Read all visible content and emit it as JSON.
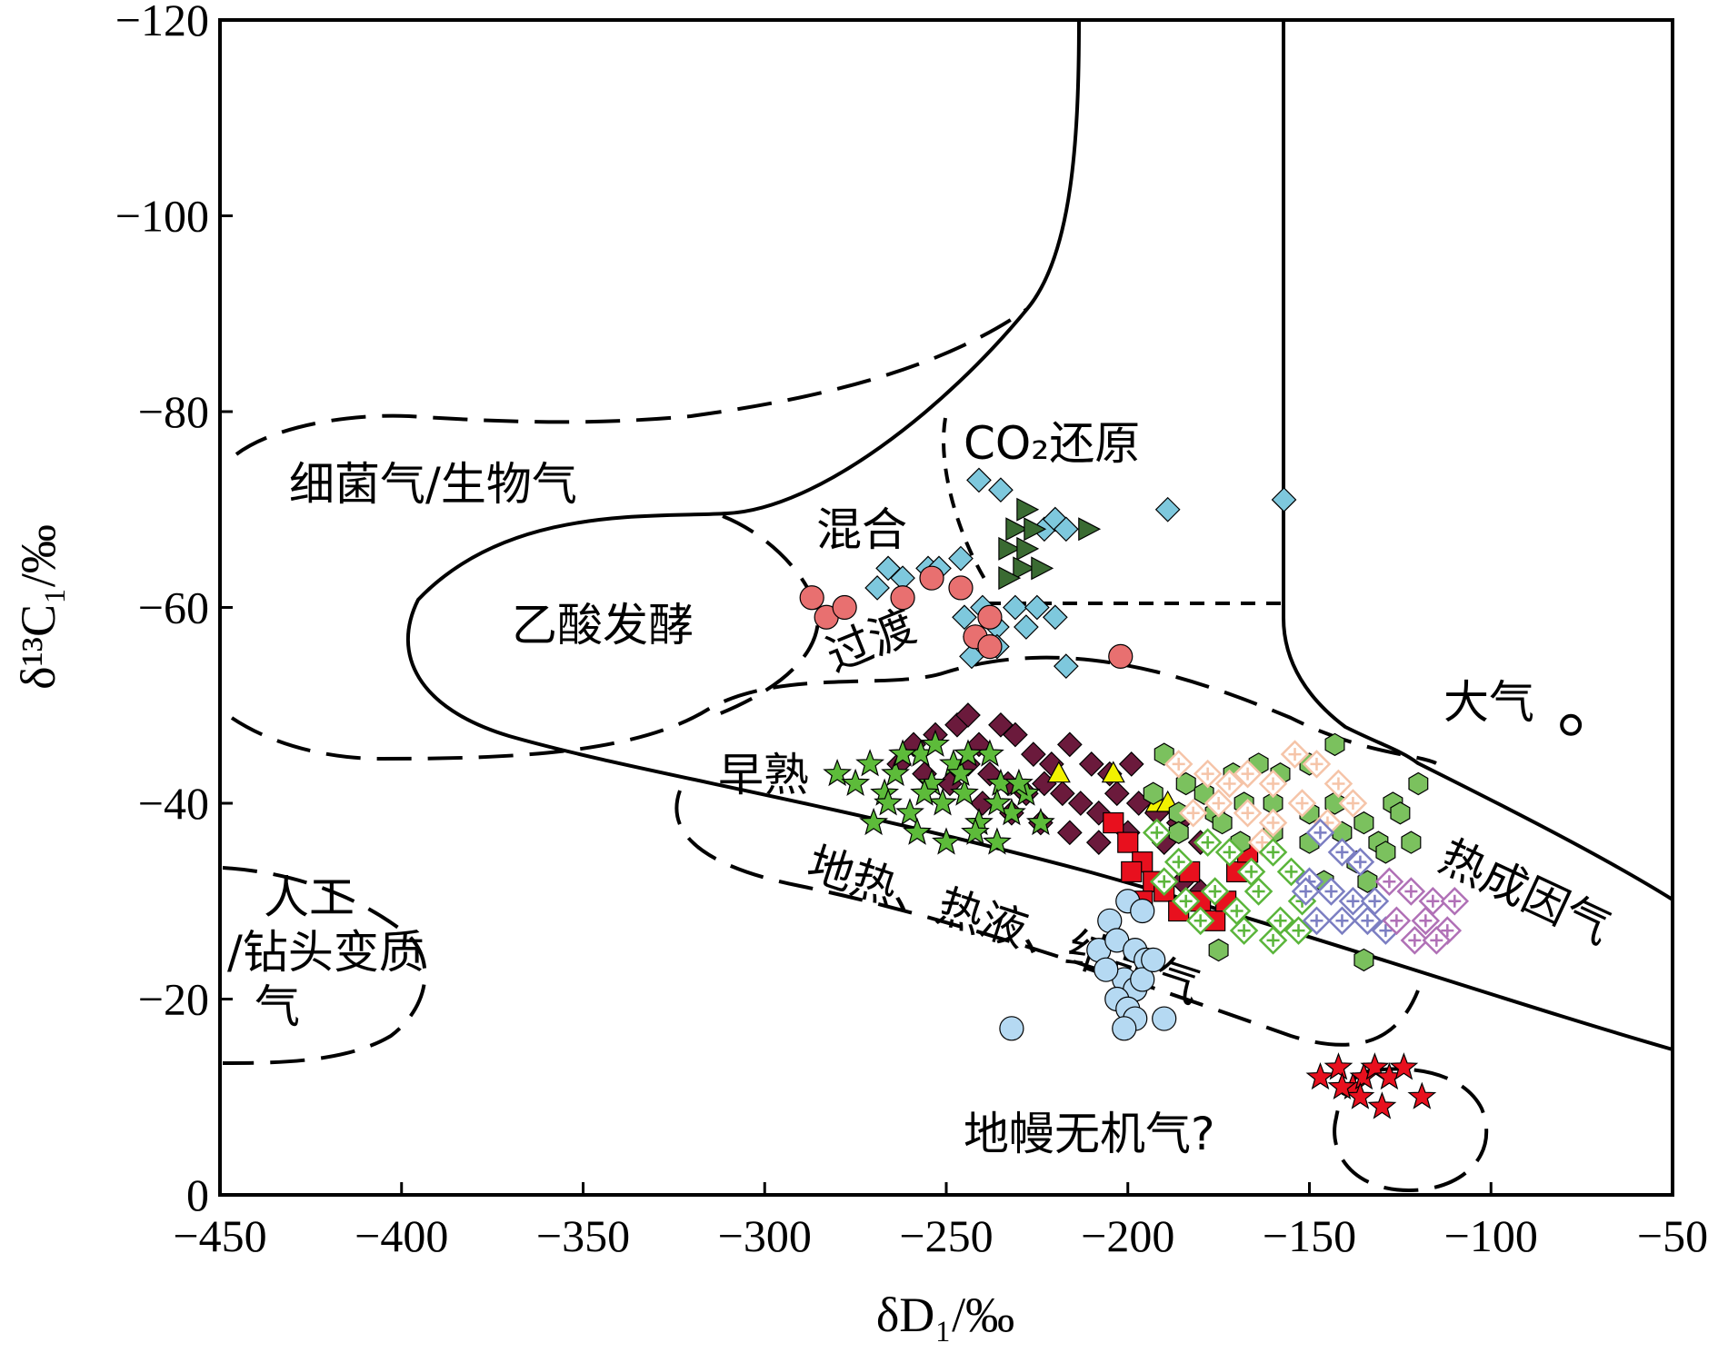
{
  "chart_data": {
    "type": "scatter",
    "title": "",
    "xlabel": "δD₁/‰",
    "ylabel": "δ¹³C₁/‰",
    "xlim": [
      -450,
      -50
    ],
    "ylim": [
      -120,
      0
    ],
    "y_axis_inverted": true,
    "xticks": [
      "-450",
      "-400",
      "-350",
      "-300",
      "-250",
      "-200",
      "-150",
      "-100",
      "-50"
    ],
    "yticks": [
      "-120",
      "-100",
      "-80",
      "-60",
      "-40",
      "-20",
      "0"
    ],
    "regions": [
      {
        "label": "细菌气/生物气"
      },
      {
        "label": "CO₂还原"
      },
      {
        "label": "混合"
      },
      {
        "label": "乙酸发酵"
      },
      {
        "label": "过渡"
      },
      {
        "label": "大气"
      },
      {
        "label": "早熟"
      },
      {
        "label": "热成因气"
      },
      {
        "label": "地热、热液、结晶气"
      },
      {
        "label": "人工/钻头变质气"
      },
      {
        "label": "地幔无机气?"
      }
    ],
    "series": [
      {
        "marker": "diamond",
        "color": "#7ec8dd",
        "points": [
          [
            -241,
            -73
          ],
          [
            -235,
            -72
          ],
          [
            -189,
            -70
          ],
          [
            -157,
            -71
          ],
          [
            -223,
            -68
          ],
          [
            -220,
            -69
          ],
          [
            -217,
            -68
          ],
          [
            -246,
            -65
          ],
          [
            -266,
            -64
          ],
          [
            -262,
            -63
          ],
          [
            -255,
            -64
          ],
          [
            -252,
            -64
          ],
          [
            -269,
            -62
          ],
          [
            -245,
            -59
          ],
          [
            -240,
            -60
          ],
          [
            -236,
            -58
          ],
          [
            -231,
            -60
          ],
          [
            -225,
            -60
          ],
          [
            -220,
            -59
          ],
          [
            -242,
            -57
          ],
          [
            -236,
            -56
          ],
          [
            -228,
            -58
          ],
          [
            -243,
            -55
          ],
          [
            -217,
            -54
          ]
        ]
      },
      {
        "marker": "triangle-right",
        "color": "#3a6b32",
        "points": [
          [
            -228,
            -70
          ],
          [
            -231,
            -68
          ],
          [
            -226,
            -68
          ],
          [
            -211,
            -68
          ],
          [
            -233,
            -66
          ],
          [
            -228,
            -66
          ],
          [
            -229,
            -64
          ],
          [
            -224,
            -64
          ],
          [
            -233,
            -63
          ]
        ]
      },
      {
        "marker": "circle",
        "color": "#e87070",
        "points": [
          [
            -287,
            -61
          ],
          [
            -283,
            -59
          ],
          [
            -278,
            -60
          ],
          [
            -262,
            -61
          ],
          [
            -254,
            -63
          ],
          [
            -246,
            -62
          ],
          [
            -238,
            -59
          ],
          [
            -242,
            -57
          ],
          [
            -238,
            -56
          ],
          [
            -202,
            -55
          ]
        ]
      },
      {
        "marker": "diamond",
        "color": "#6b1a3c",
        "points": [
          [
            -259,
            -46
          ],
          [
            -253,
            -47
          ],
          [
            -247,
            -48
          ],
          [
            -244,
            -49
          ],
          [
            -241,
            -46
          ],
          [
            -235,
            -48
          ],
          [
            -231,
            -47
          ],
          [
            -226,
            -45
          ],
          [
            -221,
            -44
          ],
          [
            -216,
            -46
          ],
          [
            -210,
            -44
          ],
          [
            -205,
            -43
          ],
          [
            -199,
            -44
          ],
          [
            -263,
            -44
          ],
          [
            -256,
            -43
          ],
          [
            -249,
            -42
          ],
          [
            -244,
            -44
          ],
          [
            -238,
            -43
          ],
          [
            -233,
            -42
          ],
          [
            -228,
            -41
          ],
          [
            -223,
            -42
          ],
          [
            -218,
            -41
          ],
          [
            -213,
            -40
          ],
          [
            -208,
            -39
          ],
          [
            -203,
            -41
          ],
          [
            -197,
            -40
          ],
          [
            -192,
            -39
          ],
          [
            -186,
            -38
          ],
          [
            -180,
            -36
          ],
          [
            -240,
            -40
          ],
          [
            -232,
            -39
          ],
          [
            -224,
            -38
          ],
          [
            -216,
            -37
          ],
          [
            -208,
            -36
          ],
          [
            -200,
            -37
          ],
          [
            -190,
            -36
          ],
          [
            -185,
            -32
          ],
          [
            -180,
            -31
          ]
        ]
      },
      {
        "marker": "star",
        "color": "#5dbb3a",
        "points": [
          [
            -280,
            -43
          ],
          [
            -275,
            -42
          ],
          [
            -271,
            -44
          ],
          [
            -267,
            -41
          ],
          [
            -264,
            -43
          ],
          [
            -260,
            -39
          ],
          [
            -257,
            -45
          ],
          [
            -254,
            -42
          ],
          [
            -251,
            -40
          ],
          [
            -248,
            -44
          ],
          [
            -245,
            -41
          ],
          [
            -241,
            -38
          ],
          [
            -238,
            -45
          ],
          [
            -235,
            -42
          ],
          [
            -232,
            -39
          ],
          [
            -228,
            -41
          ],
          [
            -224,
            -38
          ],
          [
            -258,
            -37
          ],
          [
            -250,
            -36
          ],
          [
            -242,
            -37
          ],
          [
            -236,
            -36
          ],
          [
            -266,
            -40
          ],
          [
            -262,
            -45
          ],
          [
            -253,
            -46
          ],
          [
            -246,
            -43
          ],
          [
            -270,
            -38
          ],
          [
            -256,
            -41
          ],
          [
            -244,
            -45
          ],
          [
            -236,
            -40
          ],
          [
            -230,
            -42
          ]
        ]
      },
      {
        "marker": "triangle",
        "color": "#f2f200",
        "points": [
          [
            -219,
            -43
          ],
          [
            -204,
            -43
          ],
          [
            -192,
            -40
          ],
          [
            -189,
            -40
          ]
        ]
      },
      {
        "marker": "square",
        "color": "#e8101e",
        "points": [
          [
            -204,
            -38
          ],
          [
            -200,
            -36
          ],
          [
            -196,
            -34
          ],
          [
            -199,
            -33
          ],
          [
            -193,
            -32
          ],
          [
            -196,
            -30
          ],
          [
            -190,
            -31
          ],
          [
            -186,
            -29
          ],
          [
            -183,
            -33
          ],
          [
            -180,
            -30
          ],
          [
            -176,
            -28
          ],
          [
            -173,
            -30
          ],
          [
            -170,
            -33
          ],
          [
            -167,
            -35
          ]
        ]
      },
      {
        "marker": "hexagon",
        "color": "#7bc15e",
        "points": [
          [
            -190,
            -45
          ],
          [
            -184,
            -42
          ],
          [
            -179,
            -41
          ],
          [
            -171,
            -43
          ],
          [
            -164,
            -44
          ],
          [
            -158,
            -43
          ],
          [
            -150,
            -44
          ],
          [
            -143,
            -46
          ],
          [
            -193,
            -41
          ],
          [
            -186,
            -39
          ],
          [
            -176,
            -39
          ],
          [
            -168,
            -40
          ],
          [
            -160,
            -40
          ],
          [
            -150,
            -39
          ],
          [
            -143,
            -40
          ],
          [
            -135,
            -38
          ],
          [
            -127,
            -40
          ],
          [
            -120,
            -42
          ],
          [
            -174,
            -38
          ],
          [
            -160,
            -37
          ],
          [
            -150,
            -36
          ],
          [
            -141,
            -37
          ],
          [
            -131,
            -36
          ],
          [
            -125,
            -39
          ],
          [
            -186,
            -37
          ],
          [
            -169,
            -36
          ],
          [
            -137,
            -34
          ],
          [
            -129,
            -35
          ],
          [
            -122,
            -36
          ],
          [
            -146,
            -32
          ],
          [
            -134,
            -32
          ],
          [
            -175,
            -25
          ],
          [
            -135,
            -24
          ]
        ]
      },
      {
        "marker": "diamond-open",
        "color": "#f5c4a8",
        "points": [
          [
            -186,
            -44
          ],
          [
            -178,
            -43
          ],
          [
            -172,
            -42
          ],
          [
            -167,
            -43
          ],
          [
            -160,
            -42
          ],
          [
            -154,
            -45
          ],
          [
            -148,
            -44
          ],
          [
            -142,
            -42
          ],
          [
            -175,
            -40
          ],
          [
            -167,
            -39
          ],
          [
            -160,
            -38
          ],
          [
            -152,
            -40
          ],
          [
            -145,
            -38
          ],
          [
            -138,
            -40
          ],
          [
            -182,
            -39
          ],
          [
            -163,
            -36
          ]
        ]
      },
      {
        "marker": "diamond-open",
        "color": "#5ab53a",
        "points": [
          [
            -192,
            -37
          ],
          [
            -186,
            -34
          ],
          [
            -178,
            -36
          ],
          [
            -172,
            -35
          ],
          [
            -166,
            -33
          ],
          [
            -160,
            -35
          ],
          [
            -155,
            -33
          ],
          [
            -190,
            -32
          ],
          [
            -184,
            -30
          ],
          [
            -176,
            -31
          ],
          [
            -170,
            -29
          ],
          [
            -164,
            -31
          ],
          [
            -158,
            -28
          ],
          [
            -152,
            -30
          ],
          [
            -180,
            -28
          ],
          [
            -168,
            -27
          ],
          [
            -160,
            -26
          ],
          [
            -153,
            -27
          ]
        ]
      },
      {
        "marker": "diamond-open",
        "color": "#7b7ec2",
        "points": [
          [
            -147,
            -37
          ],
          [
            -141,
            -35
          ],
          [
            -136,
            -34
          ],
          [
            -150,
            -32
          ],
          [
            -144,
            -31
          ],
          [
            -138,
            -30
          ],
          [
            -132,
            -30
          ],
          [
            -148,
            -28
          ],
          [
            -141,
            -28
          ],
          [
            -134,
            -28
          ],
          [
            -129,
            -27
          ],
          [
            -151,
            -31
          ]
        ]
      },
      {
        "marker": "diamond-open",
        "color": "#b070b6",
        "points": [
          [
            -128,
            -32
          ],
          [
            -122,
            -31
          ],
          [
            -116,
            -30
          ],
          [
            -110,
            -30
          ],
          [
            -126,
            -28
          ],
          [
            -118,
            -28
          ],
          [
            -112,
            -27
          ],
          [
            -121,
            -26
          ],
          [
            -115,
            -26
          ]
        ]
      },
      {
        "marker": "circle",
        "color": "#b5d9f2",
        "points": [
          [
            -232,
            -17
          ],
          [
            -208,
            -25
          ],
          [
            -205,
            -28
          ],
          [
            -200,
            -30
          ],
          [
            -196,
            -29
          ],
          [
            -203,
            -26
          ],
          [
            -198,
            -25
          ],
          [
            -195,
            -24
          ],
          [
            -201,
            -22
          ],
          [
            -198,
            -21
          ],
          [
            -203,
            -20
          ],
          [
            -200,
            -19
          ],
          [
            -198,
            -18
          ],
          [
            -201,
            -17
          ],
          [
            -190,
            -18
          ],
          [
            -196,
            -22
          ],
          [
            -206,
            -23
          ],
          [
            -193,
            -24
          ]
        ]
      },
      {
        "marker": "star",
        "color": "#e8101e",
        "points": [
          [
            -147,
            -12
          ],
          [
            -142,
            -13
          ],
          [
            -138,
            -11
          ],
          [
            -135,
            -12
          ],
          [
            -132,
            -13
          ],
          [
            -128,
            -12
          ],
          [
            -124,
            -13
          ],
          [
            -136,
            -10
          ],
          [
            -130,
            -9
          ],
          [
            -119,
            -10
          ],
          [
            -141,
            -11
          ]
        ]
      },
      {
        "marker": "circle-open",
        "color": "#000000",
        "points": [
          [
            -78,
            -48
          ]
        ]
      }
    ]
  }
}
